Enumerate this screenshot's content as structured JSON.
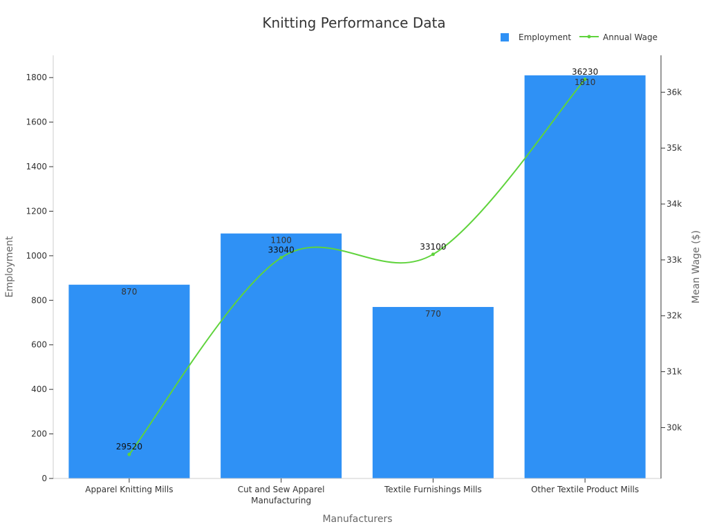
{
  "chart_data": {
    "type": "bar",
    "title": "Knitting Performance Data",
    "xlabel": "Manufacturers",
    "ylabel": "Employment",
    "y2label": "Mean Wage ($)",
    "categories": [
      "Apparel Knitting Mills",
      "Cut and Sew Apparel Manufacturing",
      "Textile Furnishings Mills",
      "Other Textile Product Mills"
    ],
    "category_lines": [
      [
        "Apparel Knitting Mills"
      ],
      [
        "Cut and Sew Apparel",
        "Manufacturing"
      ],
      [
        "Textile Furnishings Mills"
      ],
      [
        "Other Textile Product Mills"
      ]
    ],
    "series": [
      {
        "name": "Employment",
        "type": "bar",
        "axis": "left",
        "values": [
          870,
          1100,
          770,
          1810
        ]
      },
      {
        "name": "Annual Wage",
        "type": "line",
        "axis": "right",
        "values": [
          29520,
          33040,
          33100,
          36230
        ]
      }
    ],
    "ylim": [
      0,
      1900
    ],
    "yticks": [
      0,
      200,
      400,
      600,
      800,
      1000,
      1200,
      1400,
      1600,
      1800
    ],
    "y2lim": [
      29090,
      36660
    ],
    "y2ticks": [
      30000,
      31000,
      32000,
      33000,
      34000,
      35000,
      36000
    ],
    "y2tick_labels": [
      "30k",
      "31k",
      "32k",
      "33k",
      "34k",
      "35k",
      "36k"
    ],
    "legend": {
      "position": "top-right"
    },
    "grid": false,
    "colors": {
      "bar": "#2f91f5",
      "line": "#5fd33c",
      "axis": "#333333",
      "axis_light": "#cccccc"
    }
  }
}
